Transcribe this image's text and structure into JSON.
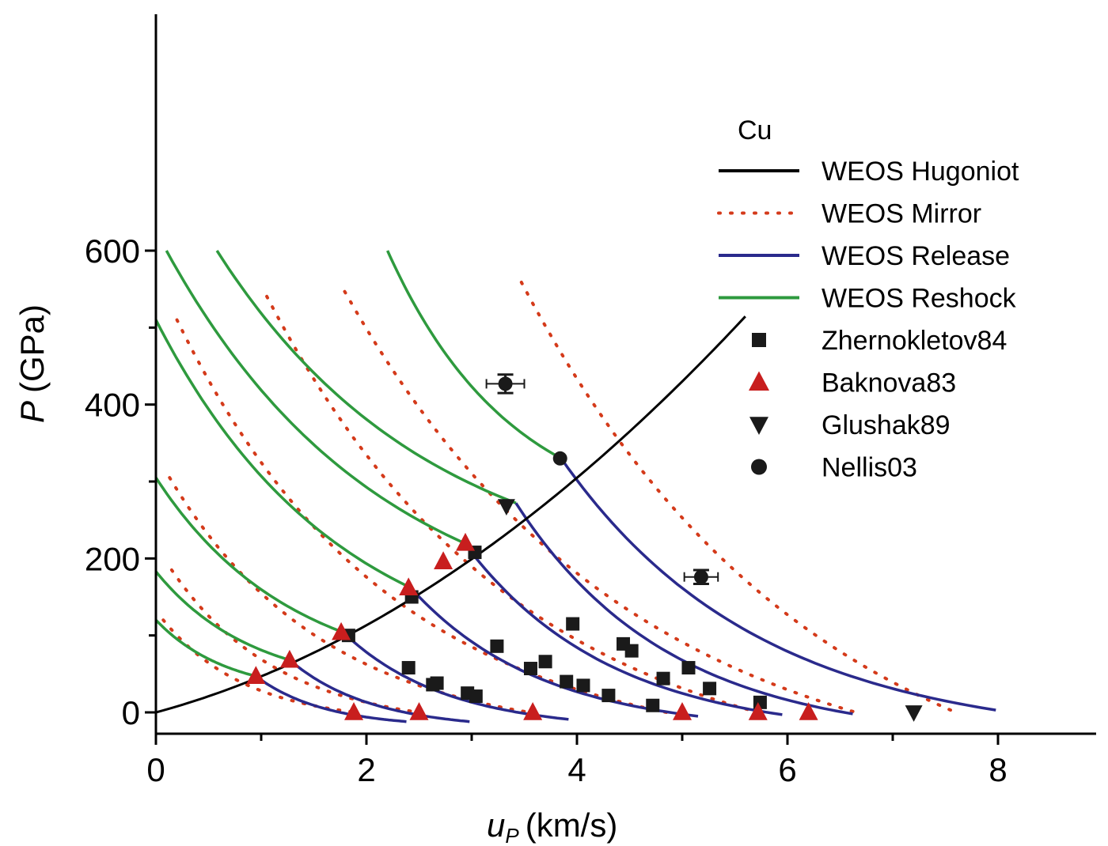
{
  "chart_data": {
    "type": "scatter",
    "annotation": "Cu",
    "xlabel_main": "u",
    "xlabel_sub": "P",
    "xlabel_unit": "(km/s)",
    "ylabel_main": "P",
    "ylabel_unit": "(GPa)",
    "xlim": [
      0,
      9
    ],
    "ylim": [
      -20,
      600
    ],
    "xticks": [
      0,
      2,
      4,
      6,
      8
    ],
    "yticks": [
      0,
      200,
      400,
      600
    ],
    "legend_position": "right",
    "colors": {
      "hugoniot": "#000000",
      "mirror": "#d43a1a",
      "release": "#2a2a8c",
      "reshock": "#2e9a3e",
      "marker": "#1a1a1a",
      "triangle": "#c81e1e"
    },
    "legend": [
      {
        "label": "WEOS Hugoniot",
        "kind": "line",
        "style": "solid",
        "color": "#000000"
      },
      {
        "label": "WEOS Mirror",
        "kind": "line",
        "style": "dotted",
        "color": "#d43a1a"
      },
      {
        "label": "WEOS Release",
        "kind": "line",
        "style": "solid",
        "color": "#2a2a8c"
      },
      {
        "label": "WEOS Reshock",
        "kind": "line",
        "style": "solid",
        "color": "#2e9a3e"
      },
      {
        "label": "Zhernokletov84",
        "kind": "square",
        "color": "#1a1a1a"
      },
      {
        "label": "Baknova83",
        "kind": "triangle-up",
        "color": "#c81e1e"
      },
      {
        "label": "Glushak89",
        "kind": "triangle-down",
        "color": "#1a1a1a"
      },
      {
        "label": "Nellis03",
        "kind": "circle",
        "color": "#1a1a1a"
      }
    ],
    "hugoniot": {
      "x": [
        0,
        0.5,
        1.0,
        1.5,
        2.0,
        2.5,
        3.0,
        3.5,
        4.0,
        4.5
      ],
      "y": [
        0,
        21,
        47,
        77,
        113,
        154,
        200,
        252,
        309,
        371
      ],
      "x_end": 5.6,
      "y_end": 600
    },
    "release_paths": [
      {
        "start": [
          0.95,
          47
        ],
        "end": [
          2.38,
          -12
        ]
      },
      {
        "start": [
          1.27,
          68
        ],
        "end": [
          2.98,
          -12
        ]
      },
      {
        "start": [
          1.78,
          104
        ],
        "end": [
          3.92,
          -9
        ]
      },
      {
        "start": [
          2.42,
          162
        ],
        "end": [
          5.15,
          -5
        ]
      },
      {
        "start": [
          2.93,
          220
        ],
        "end": [
          5.95,
          -3
        ]
      },
      {
        "start": [
          3.42,
          272
        ],
        "end": [
          6.62,
          -2
        ]
      },
      {
        "start": [
          3.85,
          330
        ],
        "end": [
          7.98,
          3
        ]
      }
    ],
    "mirror_curves": [
      {
        "p0": 120,
        "uL": 0.07,
        "uR": 1.9
      },
      {
        "p0": 185,
        "uL": 0.15,
        "uR": 2.5
      },
      {
        "p0": 305,
        "uL": 0.13,
        "uR": 3.55
      },
      {
        "p0": 510,
        "uL": 0.2,
        "uR": 4.85
      },
      {
        "p0": 800,
        "uL": 0.23,
        "uR": 5.72
      },
      {
        "p0": 970,
        "uL": 0.45,
        "uR": 6.65
      },
      {
        "p0": 1450,
        "uL": 1.25,
        "uR": 7.6
      }
    ],
    "reshock_curves": [
      {
        "start": [
          0.95,
          47
        ],
        "end": [
          0.0,
          120
        ]
      },
      {
        "start": [
          1.27,
          68
        ],
        "end": [
          0.0,
          183
        ]
      },
      {
        "start": [
          1.78,
          104
        ],
        "end": [
          0.0,
          305
        ]
      },
      {
        "start": [
          2.42,
          162
        ],
        "end": [
          0.0,
          510
        ]
      },
      {
        "start": [
          2.93,
          220
        ],
        "end": [
          0.1,
          600
        ]
      },
      {
        "start": [
          3.42,
          272
        ],
        "end": [
          0.58,
          600
        ]
      },
      {
        "start": [
          3.85,
          330
        ],
        "end": [
          2.2,
          600
        ]
      }
    ],
    "series": [
      {
        "name": "Zhernokletov84",
        "marker": "square",
        "x": [
          1.83,
          2.4,
          2.43,
          2.63,
          2.67,
          2.96,
          3.04,
          3.03,
          3.24,
          3.56,
          3.7,
          3.9,
          3.96,
          4.06,
          4.3,
          4.44,
          4.52,
          4.72,
          4.82,
          5.06,
          5.26,
          5.74
        ],
        "y": [
          100,
          58,
          150,
          36,
          38,
          25,
          21,
          208,
          86,
          57,
          66,
          40,
          115,
          35,
          22,
          89,
          80,
          9,
          44,
          58,
          31,
          13
        ]
      },
      {
        "name": "Baknova83",
        "marker": "triangle-up",
        "x": [
          0.95,
          1.27,
          1.76,
          1.88,
          2.4,
          2.5,
          2.73,
          2.94,
          3.58,
          5.0,
          5.72,
          6.2
        ],
        "y": [
          47,
          68,
          104,
          0,
          162,
          0,
          196,
          220,
          0,
          0,
          0,
          0
        ]
      },
      {
        "name": "Glushak89",
        "marker": "triangle-down",
        "x": [
          3.33,
          7.2
        ],
        "y": [
          268,
          0
        ]
      },
      {
        "name": "Nellis03",
        "marker": "circle",
        "x": [
          3.32,
          3.84,
          5.18
        ],
        "y": [
          427,
          330,
          176
        ],
        "xerr": [
          0.18,
          0.0,
          0.16
        ],
        "yerr": [
          12,
          0,
          9
        ]
      }
    ]
  }
}
